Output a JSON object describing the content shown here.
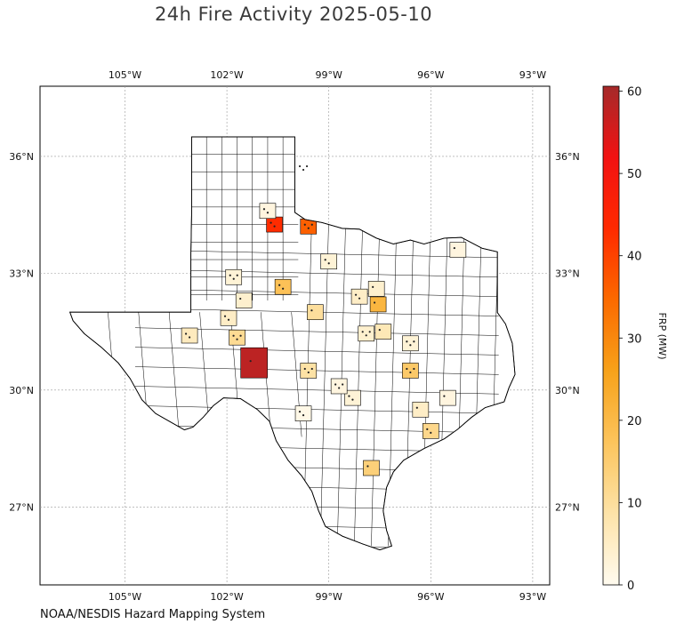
{
  "title": "24h Fire Activity 2025-05-10",
  "credit": "NOAA/NESDIS Hazard Mapping System",
  "lon_ticks": [
    "105°W",
    "102°W",
    "99°W",
    "96°W",
    "93°W"
  ],
  "lat_ticks": [
    "36°N",
    "33°N",
    "30°N",
    "27°N"
  ],
  "colorbar": {
    "label": "FRP (MW)",
    "ticks": [
      "0",
      "10",
      "20",
      "30",
      "40",
      "50",
      "60"
    ],
    "range": [
      0,
      60.6
    ],
    "colors": [
      "#fffbef",
      "#fde3a8",
      "#fcc45c",
      "#f7a21a",
      "#fb6a00",
      "#ff2a00",
      "#f21212",
      "#a52a2a"
    ]
  },
  "chart_data": {
    "type": "choropleth",
    "title": "24h Fire Activity 2025-05-10",
    "region": "Texas counties",
    "lon_range": [
      -107.5,
      -92.5
    ],
    "lat_range": [
      25.0,
      37.8
    ],
    "value_label": "FRP (MW)",
    "value_range": [
      0,
      60.6
    ],
    "shaded_areas": [
      {
        "lon": -101.2,
        "lat": 30.7,
        "frp": 58
      },
      {
        "lon": -100.6,
        "lat": 34.25,
        "frp": 43
      },
      {
        "lon": -99.6,
        "lat": 34.2,
        "frp": 36
      },
      {
        "lon": -97.55,
        "lat": 32.2,
        "frp": 21
      },
      {
        "lon": -100.35,
        "lat": 32.65,
        "frp": 18
      },
      {
        "lon": -96.6,
        "lat": 30.5,
        "frp": 16
      },
      {
        "lon": -97.75,
        "lat": 28.0,
        "frp": 14
      },
      {
        "lon": -96.0,
        "lat": 28.95,
        "frp": 12
      },
      {
        "lon": -101.7,
        "lat": 31.35,
        "frp": 11
      },
      {
        "lon": -99.4,
        "lat": 32.0,
        "frp": 10
      },
      {
        "lon": -103.1,
        "lat": 31.4,
        "frp": 6
      },
      {
        "lon": -99.6,
        "lat": 30.5,
        "frp": 9
      },
      {
        "lon": -97.4,
        "lat": 31.5,
        "frp": 7
      },
      {
        "lon": -98.1,
        "lat": 32.4,
        "frp": 5
      },
      {
        "lon": -99.75,
        "lat": 35.7,
        "frp": 5
      },
      {
        "lon": -97.6,
        "lat": 32.6,
        "frp": 4
      },
      {
        "lon": -99.0,
        "lat": 33.3,
        "frp": 3
      },
      {
        "lon": -101.8,
        "lat": 32.9,
        "frp": 3
      },
      {
        "lon": -101.5,
        "lat": 32.3,
        "frp": 4
      },
      {
        "lon": -101.95,
        "lat": 31.85,
        "frp": 5
      },
      {
        "lon": -97.9,
        "lat": 31.45,
        "frp": 4
      },
      {
        "lon": -96.3,
        "lat": 29.5,
        "frp": 5
      },
      {
        "lon": -98.3,
        "lat": 29.8,
        "frp": 3
      },
      {
        "lon": -96.6,
        "lat": 31.2,
        "frp": 3
      },
      {
        "lon": -95.5,
        "lat": 29.8,
        "frp": 2
      },
      {
        "lon": -100.8,
        "lat": 34.6,
        "frp": 2
      },
      {
        "lon": -98.7,
        "lat": 30.1,
        "frp": 2
      },
      {
        "lon": -95.2,
        "lat": 33.6,
        "frp": 2
      },
      {
        "lon": -99.75,
        "lat": 29.4,
        "frp": 1
      }
    ]
  }
}
